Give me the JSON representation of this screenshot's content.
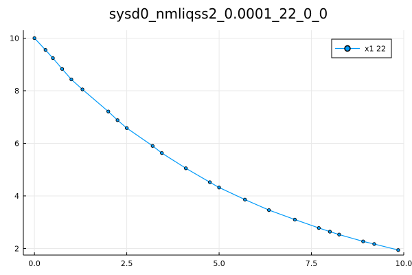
{
  "chart_data": {
    "type": "line",
    "title": "sysd0_nmliqss2_0.0001_22_0_0",
    "xlabel": "",
    "ylabel": "",
    "xlim": [
      -0.3,
      10.0
    ],
    "ylim": [
      1.75,
      10.3
    ],
    "x_ticks": [
      0.0,
      2.5,
      5.0,
      7.5,
      10.0
    ],
    "x_tick_labels": [
      "0.0",
      "2.5",
      "5.0",
      "7.5",
      "10.0"
    ],
    "y_ticks": [
      2,
      4,
      6,
      8,
      10
    ],
    "y_tick_labels": [
      "2",
      "4",
      "6",
      "8",
      "10"
    ],
    "grid": true,
    "legend_position": "top-right",
    "series": [
      {
        "name": "x1 22",
        "color": "#009af9",
        "marker": "circle",
        "x": [
          0.0,
          0.3,
          0.5,
          0.75,
          1.0,
          1.3,
          2.0,
          2.25,
          2.5,
          3.2,
          3.45,
          4.1,
          4.75,
          5.0,
          5.7,
          6.35,
          7.05,
          7.7,
          8.0,
          8.25,
          8.9,
          9.2,
          9.85
        ],
        "y": [
          10.0,
          9.55,
          9.24,
          8.83,
          8.43,
          8.05,
          7.21,
          6.88,
          6.58,
          5.9,
          5.63,
          5.05,
          4.52,
          4.32,
          3.86,
          3.46,
          3.1,
          2.78,
          2.64,
          2.53,
          2.27,
          2.17,
          1.94
        ]
      }
    ]
  }
}
